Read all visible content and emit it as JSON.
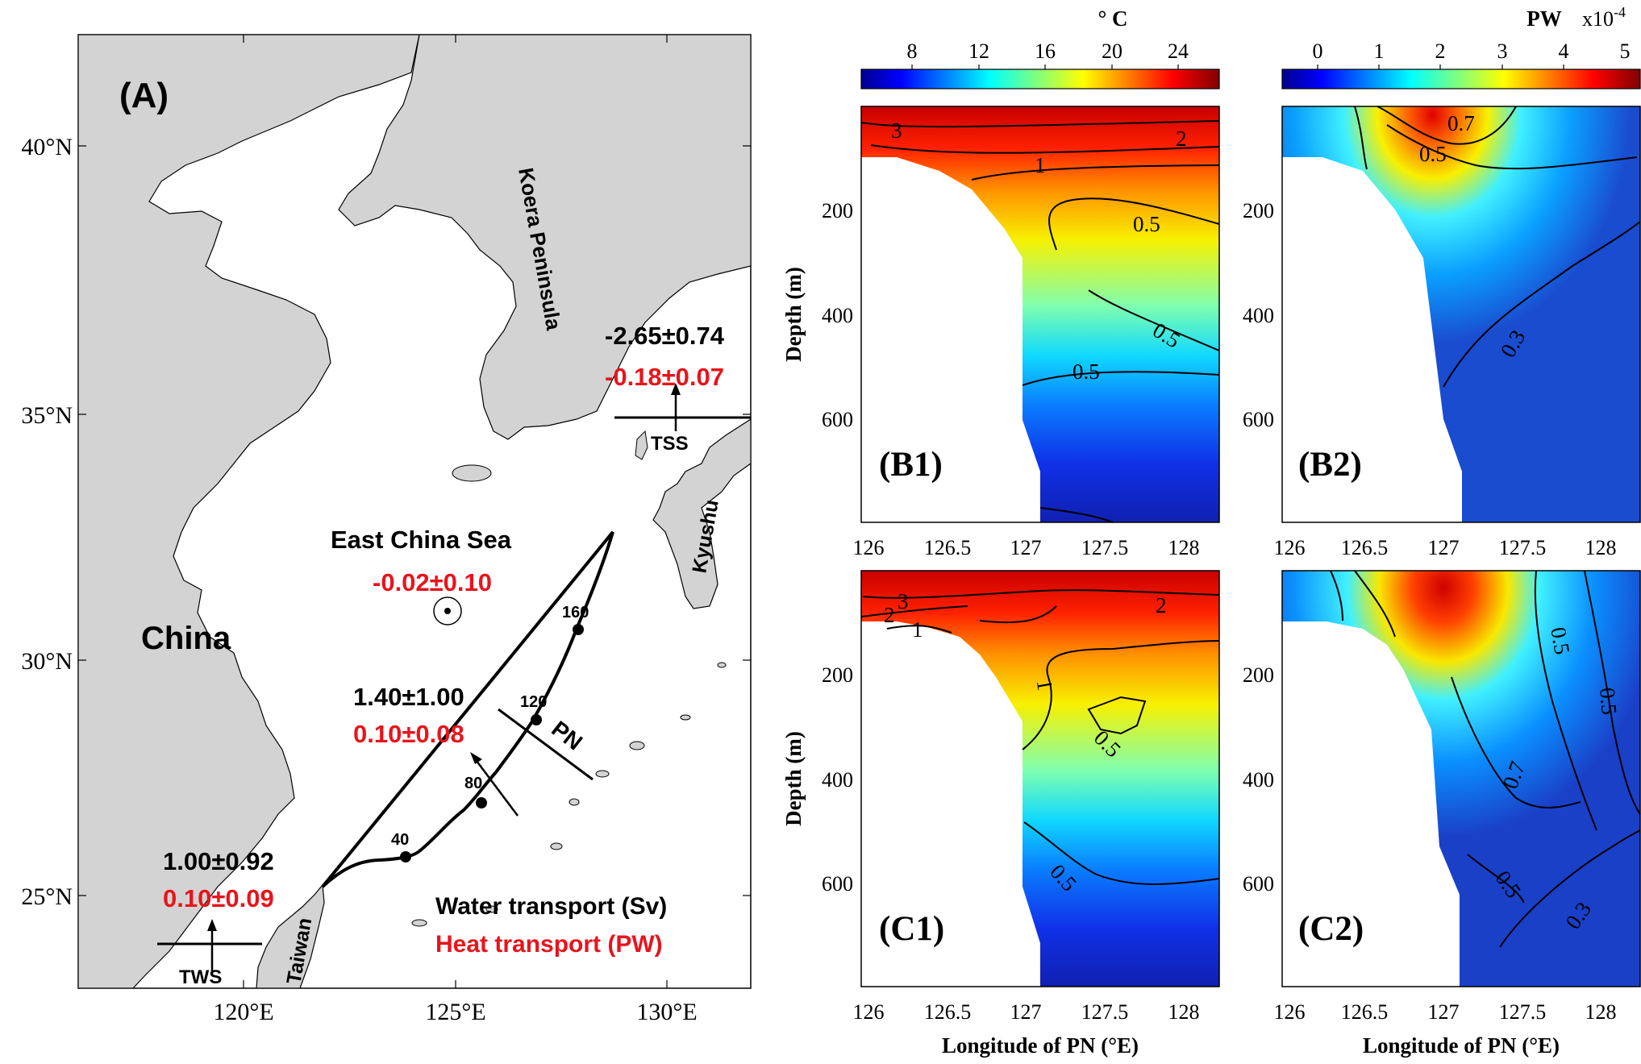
{
  "map": {
    "panel_label": "(A)",
    "lat_ticks": [
      "40°N",
      "35°N",
      "30°N",
      "25°N"
    ],
    "lon_ticks": [
      "120°E",
      "125°E",
      "130°E"
    ],
    "place_labels": {
      "china": "China",
      "korea": "Koera Peninsula",
      "ecs": "East China Sea",
      "kyushu": "Kyushu",
      "taiwan": "Taiwan"
    },
    "sections": {
      "tss": {
        "label": "TSS",
        "water": "-2.65±0.74",
        "heat": "-0.18±0.07"
      },
      "pn": {
        "label": "PN",
        "water": "1.40±1.00",
        "heat": "0.10±0.08"
      },
      "tws": {
        "label": "TWS",
        "water": "1.00±0.92",
        "heat": "0.10±0.09"
      },
      "ecs_heat": "-0.02±0.10"
    },
    "pn_markers": [
      "40",
      "80",
      "120",
      "160"
    ],
    "legend": {
      "water": "Water transport (Sv)",
      "heat": "Heat transport (PW)"
    },
    "colors": {
      "land": "#d3d3d3",
      "heat": "#e8141c",
      "water": "#000000"
    }
  },
  "colorbars": {
    "temperature": {
      "unit": "° C",
      "ticks": [
        "8",
        "12",
        "16",
        "20",
        "24"
      ],
      "range": [
        5,
        26.5
      ]
    },
    "heat": {
      "unit": "PW",
      "exponent": "x10",
      "exponent_power": "-4",
      "ticks": [
        "0",
        "1",
        "2",
        "3",
        "4",
        "5"
      ],
      "range": [
        -0.9,
        5
      ]
    }
  },
  "sections": {
    "x_ticks": [
      "126",
      "126.5",
      "127",
      "127.5",
      "128"
    ],
    "y_ticks": [
      "200",
      "400",
      "600"
    ],
    "xlabel": "Longitude of PN (°E)",
    "ylabel": "Depth (m)",
    "panels": {
      "b1": {
        "label": "(B1)",
        "contours": [
          "3",
          "2",
          "1",
          "0.5",
          "0.5",
          "0.5"
        ]
      },
      "b2": {
        "label": "(B2)",
        "contours": [
          "0.7",
          "0.5",
          "0.3"
        ]
      },
      "c1": {
        "label": "(C1)",
        "contours": [
          "2",
          "3",
          "1",
          "2",
          "1",
          "0.5",
          "0.5"
        ]
      },
      "c2": {
        "label": "(C2)",
        "contours": [
          "0.5",
          "0.5",
          "0.7",
          "0.5",
          "0.3"
        ]
      }
    }
  }
}
